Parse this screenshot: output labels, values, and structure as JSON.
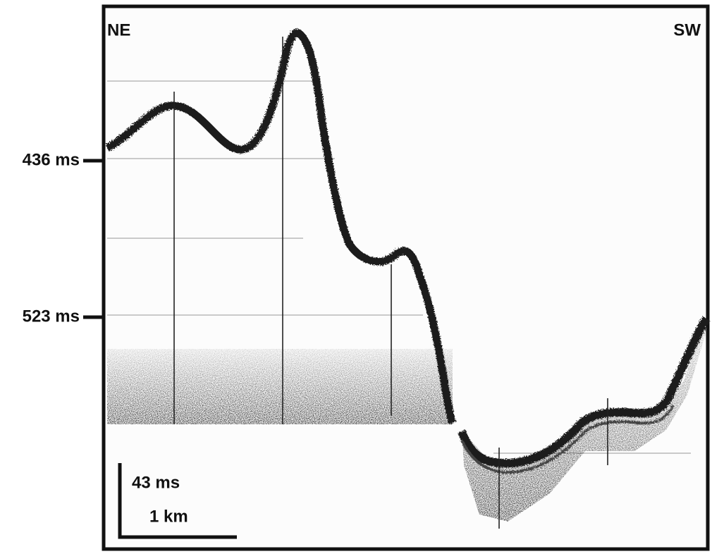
{
  "labels": {
    "left": "NE",
    "right": "SW"
  },
  "axis": {
    "ticks": [
      "436 ms",
      "523 ms"
    ]
  },
  "scale_bar": {
    "vertical": "43 ms",
    "horizontal": "1 km"
  }
}
